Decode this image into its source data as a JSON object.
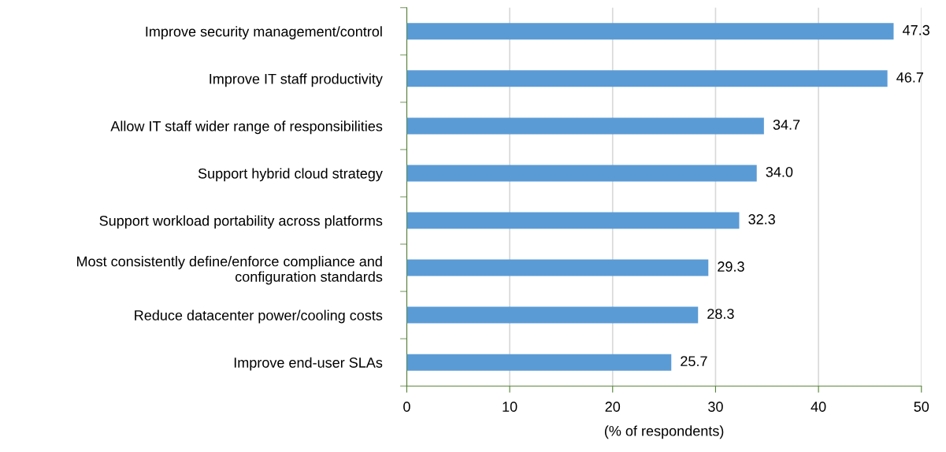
{
  "chart_data": {
    "type": "bar",
    "orientation": "horizontal",
    "categories": [
      "Improve security management/control",
      "Improve IT staff productivity",
      "Allow IT staff wider range of responsibilities",
      "Support hybrid cloud strategy",
      "Support workload portability across platforms",
      "Most consistently define/enforce compliance and\nconfiguration standards",
      "Reduce datacenter power/cooling costs",
      "Improve end-user SLAs"
    ],
    "values": [
      47.3,
      46.7,
      34.7,
      34.0,
      32.3,
      29.3,
      28.3,
      25.7
    ],
    "value_labels": [
      "47.3",
      "46.7",
      "34.7",
      "34.0",
      "32.3",
      "29.3",
      "28.3",
      "25.7"
    ],
    "color": "#5b9bd5",
    "xlabel": "(% of respondents)",
    "xlim": [
      0,
      50
    ],
    "xticks": [
      0,
      10,
      20,
      30,
      40,
      50
    ],
    "grid": "x",
    "legend": false
  }
}
